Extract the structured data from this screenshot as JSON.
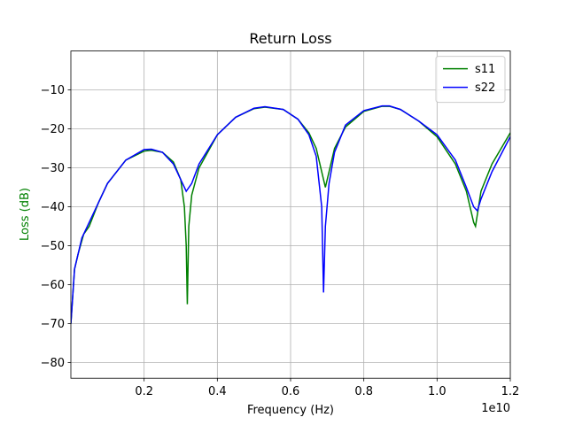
{
  "chart_data": {
    "type": "line",
    "title": "Return Loss",
    "xlabel": "Frequency (Hz)",
    "ylabel": "Loss (dB)",
    "ylabel_color": "#008000",
    "x_offset_label": "1e10",
    "xlim": [
      0,
      1.2
    ],
    "xticks": [
      0.2,
      0.4,
      0.6,
      0.8,
      {
        "value": 1.0,
        "label": "1.0"
      },
      1.2
    ],
    "ylim": [
      -84,
      0
    ],
    "yticks": [
      {
        "value": -80,
        "label": "−80"
      },
      {
        "value": -70,
        "label": "−70"
      },
      {
        "value": -60,
        "label": "−60"
      },
      {
        "value": -50,
        "label": "−50"
      },
      {
        "value": -40,
        "label": "−40"
      },
      {
        "value": -30,
        "label": "−30"
      },
      {
        "value": -20,
        "label": "−20"
      },
      {
        "value": -10,
        "label": "−10"
      }
    ],
    "grid": true,
    "legend": "upper right",
    "series": [
      {
        "name": "s11",
        "color": "#008000",
        "x": [
          0,
          0.01,
          0.02,
          0.035,
          0.05,
          0.075,
          0.1,
          0.15,
          0.2,
          0.22,
          0.25,
          0.28,
          0.3,
          0.31,
          0.315,
          0.318,
          0.322,
          0.33,
          0.35,
          0.4,
          0.45,
          0.5,
          0.53,
          0.58,
          0.62,
          0.65,
          0.67,
          0.685,
          0.695,
          0.705,
          0.72,
          0.75,
          0.8,
          0.85,
          0.87,
          0.9,
          0.95,
          1.0,
          1.05,
          1.08,
          1.1,
          1.105,
          1.12,
          1.15,
          1.2
        ],
        "values": [
          -70,
          -56,
          -52,
          -47,
          -45,
          -39,
          -34,
          -28,
          -25.7,
          -25.5,
          -26,
          -28.5,
          -33,
          -40,
          -50,
          -65,
          -45,
          -37,
          -30,
          -21.5,
          -17,
          -14.8,
          -14.4,
          -15,
          -17.5,
          -21,
          -25,
          -31,
          -35,
          -31,
          -25,
          -19.5,
          -15.5,
          -14.2,
          -14.2,
          -15,
          -18,
          -22,
          -29,
          -36,
          -44,
          -45,
          -36,
          -29,
          -21
        ]
      },
      {
        "name": "s22",
        "color": "#0000ff",
        "x": [
          0,
          0.01,
          0.03,
          0.05,
          0.075,
          0.1,
          0.15,
          0.2,
          0.22,
          0.25,
          0.28,
          0.3,
          0.315,
          0.33,
          0.35,
          0.4,
          0.45,
          0.5,
          0.53,
          0.58,
          0.62,
          0.65,
          0.67,
          0.685,
          0.69,
          0.695,
          0.705,
          0.72,
          0.75,
          0.8,
          0.85,
          0.87,
          0.9,
          0.95,
          1.0,
          1.05,
          1.08,
          1.1,
          1.11,
          1.12,
          1.15,
          1.2
        ],
        "values": [
          -70,
          -56,
          -48,
          -44,
          -39,
          -34,
          -28,
          -25.3,
          -25.2,
          -26,
          -29,
          -33,
          -36,
          -34,
          -29,
          -21.5,
          -17,
          -14.7,
          -14.3,
          -15,
          -17.5,
          -21.5,
          -27,
          -40,
          -62,
          -45,
          -34,
          -26,
          -19,
          -15.3,
          -14.1,
          -14.1,
          -15,
          -18,
          -21.5,
          -28,
          -35,
          -40,
          -41,
          -38,
          -31,
          -22
        ]
      }
    ]
  }
}
